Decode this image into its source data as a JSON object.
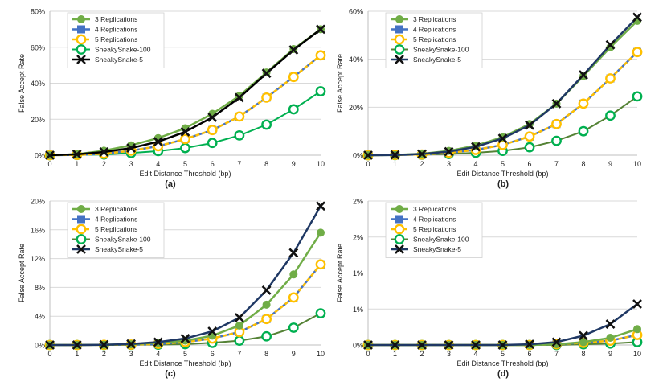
{
  "colors": {
    "3 Replications": "#70ad47",
    "4 Replications": "#4472c4",
    "5 Replications": "#ffc000",
    "SneakySnake-100": "#548235",
    "SneakySnake-5": "#1f3864",
    "marker_dark": "#111111",
    "grid": "#d9d9d9",
    "axis": "#bfbfbf"
  },
  "chart_data": [
    {
      "type": "line",
      "caption": "(a)",
      "xlabel": "Edit Distance Threshold (bp)",
      "ylabel": "False Accept Rate",
      "x": [
        0,
        1,
        2,
        3,
        4,
        5,
        6,
        7,
        8,
        9,
        10
      ],
      "ylim": [
        0,
        80
      ],
      "yticks": [
        0,
        20,
        40,
        60,
        80
      ],
      "ytick_labels": [
        "0%",
        "20%",
        "40%",
        "60%",
        "80%"
      ],
      "grid": true,
      "legend_position": "top-left",
      "series": [
        {
          "name": "3 Replications",
          "values": [
            0,
            0.6,
            2.5,
            5.5,
            9.5,
            15,
            23,
            33,
            46,
            59,
            70
          ]
        },
        {
          "name": "4 Replications",
          "values": [
            0,
            0.2,
            0.8,
            2.5,
            5,
            9,
            14,
            21.5,
            32,
            43.5,
            55.5
          ]
        },
        {
          "name": "5 Replications",
          "values": [
            0,
            0.2,
            0.8,
            2.5,
            5,
            9,
            14,
            21.5,
            32,
            43.5,
            55.5
          ]
        },
        {
          "name": "SneakySnake-100",
          "values": [
            0,
            0.1,
            0.4,
            1.2,
            2.3,
            4,
            6.8,
            11,
            17,
            25.5,
            35.5
          ]
        },
        {
          "name": "SneakySnake-5",
          "values": [
            0,
            0.5,
            1.8,
            4,
            7.5,
            13,
            21,
            32,
            45.5,
            58.5,
            70
          ]
        }
      ]
    },
    {
      "type": "line",
      "caption": "(b)",
      "xlabel": "Edit Distance Threshold (bp)",
      "ylabel": "False Accept Rate",
      "x": [
        0,
        1,
        2,
        3,
        4,
        5,
        6,
        7,
        8,
        9,
        10
      ],
      "ylim": [
        0,
        60
      ],
      "yticks": [
        0,
        20,
        40,
        60
      ],
      "ytick_labels": [
        "0%",
        "20%",
        "40%",
        "60%"
      ],
      "grid": true,
      "legend_position": "top-left",
      "series": [
        {
          "name": "3 Replications",
          "values": [
            0,
            0.1,
            0.6,
            1.8,
            4,
            7.5,
            13,
            21.5,
            33,
            45,
            56
          ]
        },
        {
          "name": "4 Replications",
          "values": [
            0,
            0.1,
            0.3,
            1,
            2.2,
            4.3,
            7.8,
            13,
            21.5,
            32,
            43
          ]
        },
        {
          "name": "5 Replications",
          "values": [
            0,
            0.1,
            0.3,
            1,
            2.2,
            4.3,
            7.8,
            13,
            21.5,
            32,
            43
          ]
        },
        {
          "name": "SneakySnake-100",
          "values": [
            0,
            0.05,
            0.2,
            0.5,
            1,
            1.8,
            3.3,
            6,
            10,
            16.5,
            24.5
          ]
        },
        {
          "name": "SneakySnake-5",
          "values": [
            0,
            0.1,
            0.5,
            1.5,
            3.5,
            7,
            12.5,
            21.5,
            33.5,
            46,
            57.5
          ]
        }
      ]
    },
    {
      "type": "line",
      "caption": "(c)",
      "xlabel": "Edit Distance Threshold (bp)",
      "ylabel": "False Accept Rate",
      "x": [
        0,
        1,
        2,
        3,
        4,
        5,
        6,
        7,
        8,
        9,
        10
      ],
      "ylim": [
        0,
        20
      ],
      "yticks": [
        0,
        4,
        8,
        12,
        16,
        20
      ],
      "ytick_labels": [
        "0%",
        "4%",
        "8%",
        "12%",
        "16%",
        "20%"
      ],
      "grid": true,
      "legend_position": "top-left",
      "series": [
        {
          "name": "3 Replications",
          "values": [
            0,
            0,
            0.03,
            0.1,
            0.3,
            0.6,
            1.3,
            2.7,
            5.6,
            9.8,
            15.6
          ]
        },
        {
          "name": "4 Replications",
          "values": [
            0,
            0,
            0.02,
            0.05,
            0.15,
            0.4,
            0.9,
            1.8,
            3.6,
            6.6,
            11.2
          ]
        },
        {
          "name": "5 Replications",
          "values": [
            0,
            0,
            0.02,
            0.05,
            0.15,
            0.4,
            0.9,
            1.8,
            3.6,
            6.6,
            11.2
          ]
        },
        {
          "name": "SneakySnake-100",
          "values": [
            0,
            0,
            0,
            0.02,
            0.05,
            0.12,
            0.3,
            0.6,
            1.2,
            2.4,
            4.4
          ]
        },
        {
          "name": "SneakySnake-5",
          "values": [
            0,
            0,
            0.03,
            0.15,
            0.4,
            0.9,
            1.9,
            3.8,
            7.6,
            12.8,
            19.3
          ]
        }
      ]
    },
    {
      "type": "line",
      "caption": "(d)",
      "xlabel": "Edit Distance Threshold (bp)",
      "ylabel": "False Accept Rate",
      "x": [
        0,
        1,
        2,
        3,
        4,
        5,
        6,
        7,
        8,
        9,
        10
      ],
      "ylim": [
        0,
        2
      ],
      "yticks": [
        0,
        0.5,
        1,
        1.5,
        2
      ],
      "ytick_labels": [
        "0%",
        "1%",
        "1%",
        "2%",
        "2%"
      ],
      "grid": true,
      "legend_position": "top-left",
      "series": [
        {
          "name": "3 Replications",
          "values": [
            0,
            0,
            0,
            0,
            0,
            0,
            0,
            0.01,
            0.04,
            0.1,
            0.22
          ]
        },
        {
          "name": "4 Replications",
          "values": [
            0,
            0,
            0,
            0,
            0,
            0,
            0,
            0.01,
            0.03,
            0.06,
            0.14
          ]
        },
        {
          "name": "5 Replications",
          "values": [
            0,
            0,
            0,
            0,
            0,
            0,
            0,
            0.01,
            0.03,
            0.06,
            0.14
          ]
        },
        {
          "name": "SneakySnake-100",
          "values": [
            0,
            0,
            0,
            0,
            0,
            0,
            0,
            0,
            0.01,
            0.02,
            0.04
          ]
        },
        {
          "name": "SneakySnake-5",
          "values": [
            0,
            0,
            0,
            0,
            0,
            0,
            0.01,
            0.04,
            0.13,
            0.29,
            0.57
          ]
        }
      ]
    }
  ]
}
